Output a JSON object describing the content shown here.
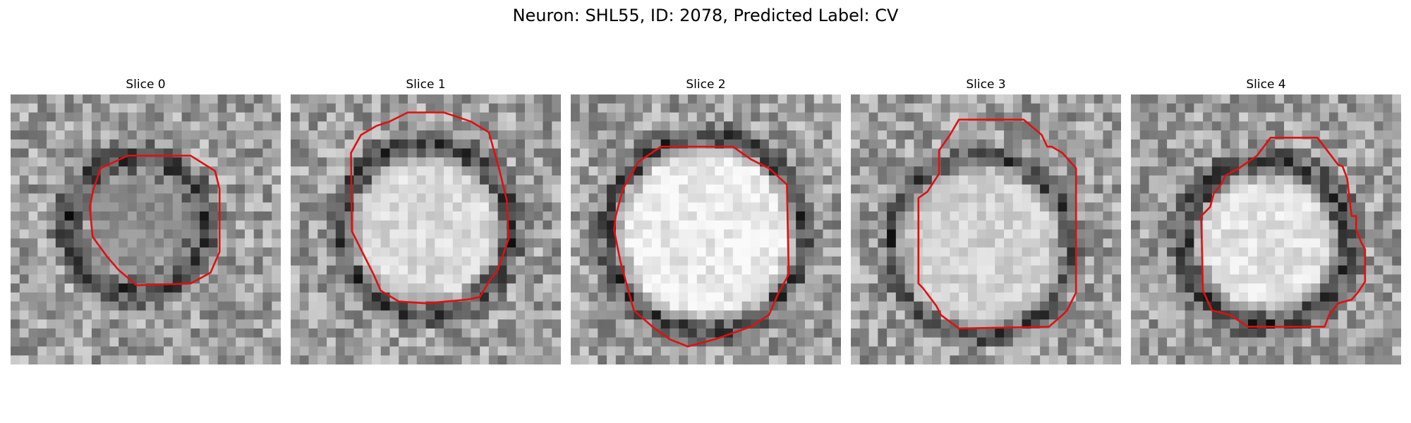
{
  "figure": {
    "title": "Neuron: SHL55, ID: 2078, Predicted Label: CV"
  },
  "panels": [
    {
      "title": "Slice 0",
      "image_description": "grayscale microscopy crop"
    },
    {
      "title": "Slice 1",
      "image_description": "grayscale microscopy crop"
    },
    {
      "title": "Slice 2",
      "image_description": "grayscale microscopy crop"
    },
    {
      "title": "Slice 3",
      "image_description": "grayscale microscopy crop"
    },
    {
      "title": "Slice 4",
      "image_description": "grayscale microscopy crop"
    }
  ],
  "colors": {
    "contour": "#e01010",
    "background": "#ffffff"
  }
}
